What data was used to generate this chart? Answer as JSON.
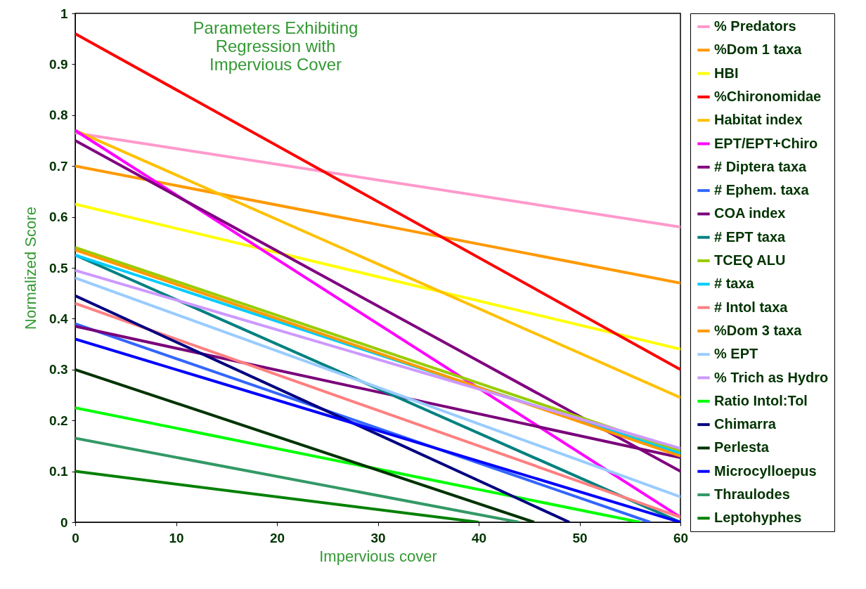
{
  "chart_data": {
    "type": "line",
    "title": "Parameters Exhibiting\nRegression with\nImpervious Cover",
    "xlabel": "Impervious cover",
    "ylabel": "Normalized Score",
    "xlim": [
      0,
      60
    ],
    "xticks": [
      0,
      10,
      20,
      30,
      40,
      50,
      60
    ],
    "ylim": [
      0,
      1
    ],
    "yticks": [
      {
        "value": 0,
        "label": "0"
      },
      0.1,
      0.2,
      0.3,
      0.4,
      0.5,
      0.6,
      0.7,
      0.8,
      0.9,
      {
        "value": 1,
        "label": "1"
      }
    ],
    "grid": false,
    "legend": "right",
    "series": [
      {
        "name": "% Predators",
        "color": "#ff99cc",
        "x": [
          0,
          60
        ],
        "values": [
          0.765,
          0.58
        ]
      },
      {
        "name": "%Dom 1 taxa",
        "color": "#ff9900",
        "x": [
          0,
          60
        ],
        "values": [
          0.7,
          0.47
        ]
      },
      {
        "name": "HBI",
        "color": "#ffff00",
        "x": [
          0,
          60
        ],
        "values": [
          0.625,
          0.34
        ]
      },
      {
        "name": "%Chironomidae",
        "color": "#ff0000",
        "x": [
          0,
          60
        ],
        "values": [
          0.96,
          0.3
        ]
      },
      {
        "name": "Habitat index",
        "color": "#ffc000",
        "x": [
          0,
          60
        ],
        "values": [
          0.77,
          0.245
        ]
      },
      {
        "name": "EPT/EPT+Chiro",
        "color": "#ff00ff",
        "x": [
          0,
          60
        ],
        "values": [
          0.77,
          0.01
        ]
      },
      {
        "name": "# Diptera taxa",
        "color": "#800080",
        "x": [
          0,
          60
        ],
        "values": [
          0.75,
          0.1
        ]
      },
      {
        "name": "# Ephem. taxa",
        "color": "#3366ff",
        "x": [
          0,
          57
        ],
        "values": [
          0.39,
          0
        ]
      },
      {
        "name": "COA index",
        "color": "#7a007a",
        "x": [
          0,
          60
        ],
        "values": [
          0.385,
          0.127
        ]
      },
      {
        "name": "# EPT taxa",
        "color": "#008080",
        "x": [
          0,
          60
        ],
        "values": [
          0.525,
          0
        ]
      },
      {
        "name": "TCEQ ALU",
        "color": "#99cc00",
        "x": [
          0,
          60
        ],
        "values": [
          0.54,
          0.14
        ]
      },
      {
        "name": "# taxa",
        "color": "#00ccff",
        "x": [
          0,
          60
        ],
        "values": [
          0.525,
          0.135
        ]
      },
      {
        "name": "# Intol taxa",
        "color": "#ff8080",
        "x": [
          0,
          60
        ],
        "values": [
          0.43,
          0.01
        ]
      },
      {
        "name": "%Dom 3 taxa",
        "color": "#ff9901",
        "x": [
          0,
          60
        ],
        "values": [
          0.535,
          0.13
        ]
      },
      {
        "name": "% EPT",
        "color": "#99ccff",
        "x": [
          0,
          60
        ],
        "values": [
          0.48,
          0.05
        ]
      },
      {
        "name": "% Trich as Hydro",
        "color": "#cc99ff",
        "x": [
          0,
          60
        ],
        "values": [
          0.495,
          0.145
        ]
      },
      {
        "name": "Ratio Intol:Tol",
        "color": "#00ff00",
        "x": [
          0,
          56
        ],
        "values": [
          0.225,
          0
        ]
      },
      {
        "name": "Chimarra",
        "color": "#000080",
        "x": [
          0,
          49
        ],
        "values": [
          0.445,
          0
        ]
      },
      {
        "name": "Perlesta",
        "color": "#003300",
        "x": [
          0,
          45.5
        ],
        "values": [
          0.3,
          0
        ]
      },
      {
        "name": "Microcylloepus",
        "color": "#0000ff",
        "x": [
          0,
          60
        ],
        "values": [
          0.36,
          0
        ]
      },
      {
        "name": "Thraulodes",
        "color": "#339966",
        "x": [
          0,
          44
        ],
        "values": [
          0.165,
          0
        ]
      },
      {
        "name": "Leptohyphes",
        "color": "#008000",
        "x": [
          0,
          40
        ],
        "values": [
          0.1,
          0
        ]
      }
    ]
  }
}
